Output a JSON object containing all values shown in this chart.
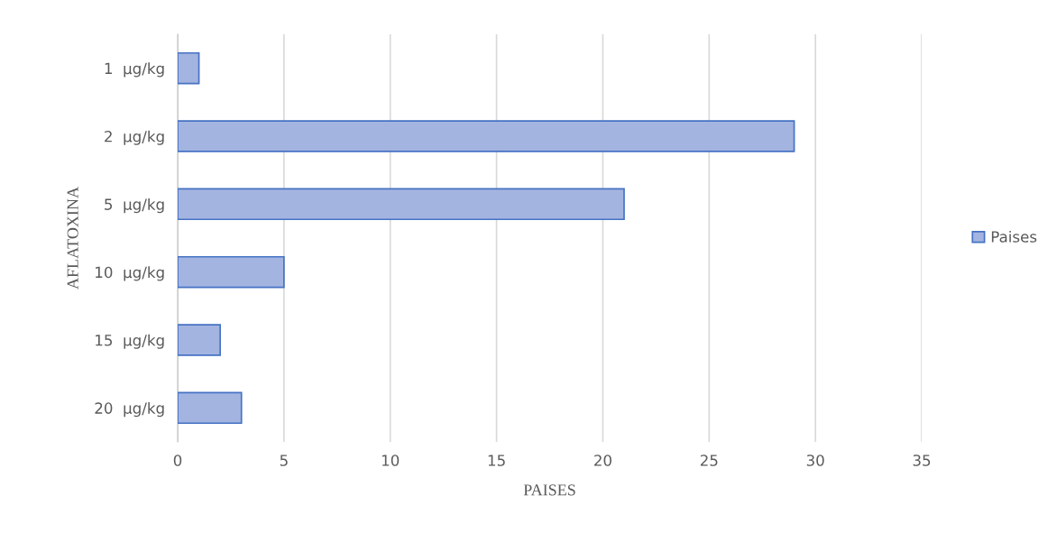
{
  "chart_data": {
    "type": "bar",
    "orientation": "horizontal",
    "xlabel": "PAISES",
    "ylabel": "AFLATOXINA",
    "categories": [
      "1  µg/kg",
      "2  µg/kg",
      "5  µg/kg",
      "10  µg/kg",
      "15  µg/kg",
      "20  µg/kg"
    ],
    "series": [
      {
        "name": "Paises",
        "color": "#a4b4e0",
        "values": [
          1,
          29,
          21,
          5,
          2,
          3
        ]
      }
    ],
    "xlim": [
      0,
      35
    ],
    "xticks": [
      0,
      5,
      10,
      15,
      20,
      25,
      30,
      35
    ],
    "grid": "x",
    "legend": "right"
  }
}
